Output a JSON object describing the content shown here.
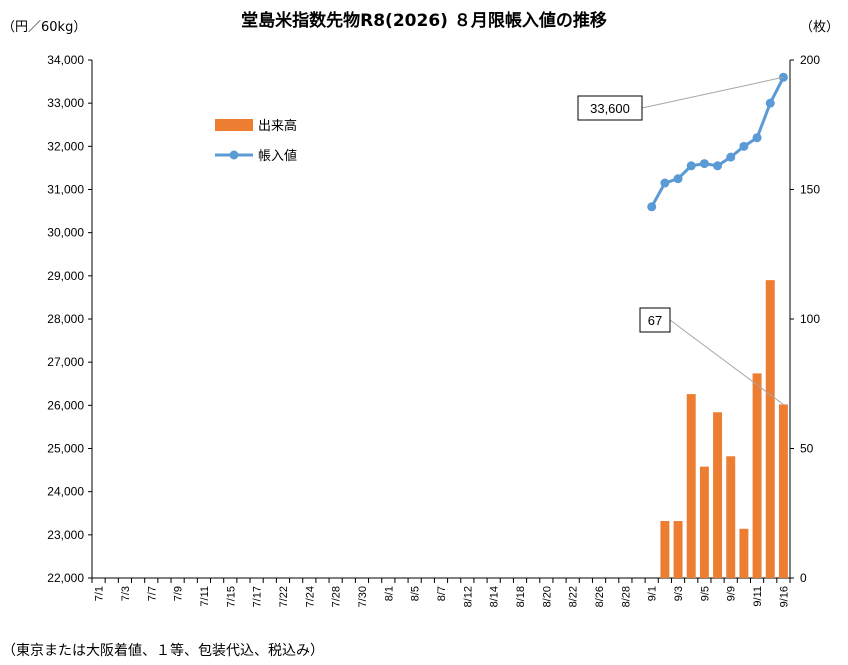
{
  "chart_data": {
    "type": "bar+line",
    "title": "堂島米指数先物R8(2026) ８月限帳入値の推移",
    "ylabel_left": "（円／60kg）",
    "ylabel_right": "（枚）",
    "ylim_left": [
      22000,
      34000
    ],
    "ylim_right": [
      0,
      200
    ],
    "yticks_left": [
      "22,000",
      "23,000",
      "24,000",
      "25,000",
      "26,000",
      "27,000",
      "28,000",
      "29,000",
      "30,000",
      "31,000",
      "32,000",
      "33,000",
      "34,000"
    ],
    "yticks_right": [
      "0",
      "50",
      "100",
      "150",
      "200"
    ],
    "categories": [
      "7/1",
      "7/2",
      "7/3",
      "7/4",
      "7/7",
      "7/8",
      "7/9",
      "7/10",
      "7/11",
      "7/14",
      "7/15",
      "7/16",
      "7/17",
      "7/18",
      "7/22",
      "7/23",
      "7/24",
      "7/25",
      "7/28",
      "7/29",
      "7/30",
      "7/31",
      "8/1",
      "8/4",
      "8/5",
      "8/6",
      "8/7",
      "8/8",
      "8/12",
      "8/13",
      "8/14",
      "8/15",
      "8/18",
      "8/19",
      "8/20",
      "8/21",
      "8/22",
      "8/25",
      "8/26",
      "8/27",
      "8/28",
      "8/29",
      "9/1",
      "9/2",
      "9/3",
      "9/4",
      "9/5",
      "9/8",
      "9/9",
      "9/10",
      "9/11",
      "9/12",
      "9/16"
    ],
    "xtick_labels": [
      "7/1",
      "7/3",
      "7/7",
      "7/9",
      "7/11",
      "7/15",
      "7/17",
      "7/22",
      "7/24",
      "7/28",
      "7/30",
      "8/1",
      "8/5",
      "8/7",
      "8/12",
      "8/14",
      "8/18",
      "8/20",
      "8/22",
      "8/26",
      "8/28",
      "9/1",
      "9/3",
      "9/5",
      "9/9",
      "9/11",
      "9/16"
    ],
    "series": [
      {
        "name": "出来高",
        "kind": "bar",
        "axis": "right",
        "color": "#ED7D31",
        "values": [
          null,
          null,
          null,
          null,
          null,
          null,
          null,
          null,
          null,
          null,
          null,
          null,
          null,
          null,
          null,
          null,
          null,
          null,
          null,
          null,
          null,
          null,
          null,
          null,
          null,
          null,
          null,
          null,
          null,
          null,
          null,
          null,
          null,
          null,
          null,
          null,
          null,
          null,
          null,
          null,
          null,
          null,
          null,
          22,
          22,
          71,
          43,
          64,
          47,
          19,
          79,
          115,
          67
        ]
      },
      {
        "name": "帳入値",
        "kind": "line",
        "axis": "left",
        "color": "#5B9BD5",
        "values": [
          null,
          null,
          null,
          null,
          null,
          null,
          null,
          null,
          null,
          null,
          null,
          null,
          null,
          null,
          null,
          null,
          null,
          null,
          null,
          null,
          null,
          null,
          null,
          null,
          null,
          null,
          null,
          null,
          null,
          null,
          null,
          null,
          null,
          null,
          null,
          null,
          null,
          null,
          null,
          null,
          null,
          null,
          30600,
          31150,
          31250,
          31550,
          31600,
          31550,
          31750,
          32000,
          32200,
          33000,
          33600
        ]
      }
    ],
    "annotations": [
      {
        "text": "33,600",
        "series": "帳入値",
        "category": "9/16"
      },
      {
        "text": "67",
        "series": "出来高",
        "category": "9/16"
      }
    ],
    "legend": {
      "position": "upper-left-inside",
      "items": [
        "出来高",
        "帳入値"
      ]
    },
    "grid": false
  },
  "footnote": "（東京または大阪着値、１等、包装代込、税込み）"
}
